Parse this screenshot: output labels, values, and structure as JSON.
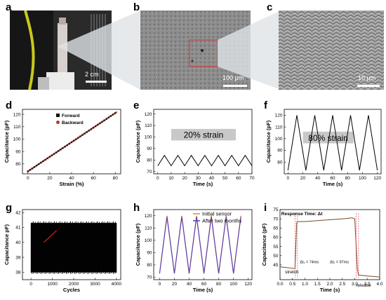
{
  "panels": [
    "a",
    "b",
    "c",
    "d",
    "e",
    "f",
    "g",
    "h",
    "i"
  ],
  "scalebars": {
    "a": "2 cm",
    "b": "100 μm",
    "c": "10 μm"
  },
  "d": {
    "xlabel": "Strain (%)",
    "ylabel": "Capacitance (pF)",
    "legend": [
      "Forward",
      "Backward"
    ],
    "xticks": [
      "0",
      "20",
      "40",
      "60",
      "80"
    ],
    "yticks": [
      "80",
      "90",
      "100",
      "110",
      "120"
    ]
  },
  "e": {
    "annotation": "20% strain",
    "xlabel": "Time (s)",
    "ylabel": "Capacitance (pF)",
    "xticks": [
      "0",
      "10",
      "20",
      "30",
      "40",
      "50",
      "60",
      "70"
    ],
    "yticks": [
      "70",
      "80",
      "90",
      "100",
      "110",
      "120"
    ]
  },
  "f": {
    "annotation": "80% strain",
    "xlabel": "Time (s)",
    "ylabel": "Capacitance (pF)",
    "xticks": [
      "0",
      "20",
      "40",
      "60",
      "80",
      "100",
      "120"
    ],
    "yticks": [
      "80",
      "90",
      "100",
      "110",
      "120"
    ]
  },
  "g": {
    "xlabel": "Cycles",
    "ylabel": "Capacitance pF)",
    "xticks": [
      "0",
      "1000",
      "2000",
      "3000",
      "4000"
    ],
    "yticks": [
      "38",
      "39",
      "40",
      "41",
      "42"
    ]
  },
  "h": {
    "xlabel": "Time (s)",
    "ylabel": "Capacitance (pF)",
    "legend": [
      "Initial sensor",
      "After two months"
    ],
    "xticks": [
      "0",
      "20",
      "40",
      "60",
      "80",
      "100",
      "120"
    ],
    "yticks": [
      "70",
      "80",
      "90",
      "100",
      "110",
      "120"
    ]
  },
  "i": {
    "title": "Response Time: Δt",
    "xlabel": "Time (s)",
    "ylabel": "Capacitance (pF)",
    "dt1": "Δt₁ = 74ms",
    "dt2": "Δt₂ = 97ms",
    "stretch": "stretch",
    "release": "release",
    "xticks": [
      "0.0",
      "0.5",
      "1.0",
      "1.5",
      "2.0",
      "2.5",
      "3.0",
      "3.5",
      "4.0"
    ],
    "yticks": [
      "45",
      "50",
      "55",
      "60",
      "65",
      "70",
      "75"
    ]
  },
  "chart_data": [
    {
      "type": "scatter",
      "panel": "d",
      "xlabel": "Strain (%)",
      "ylabel": "Capacitance (pF)",
      "xlim": [
        -5,
        85
      ],
      "ylim": [
        72,
        124
      ],
      "series": [
        {
          "name": "Forward",
          "x": [
            0,
            80
          ],
          "y": [
            74,
            121
          ]
        },
        {
          "name": "Backward",
          "x": [
            80,
            0
          ],
          "y": [
            121,
            74
          ]
        }
      ]
    },
    {
      "type": "line",
      "panel": "e",
      "xlabel": "Time (s)",
      "ylabel": "Capacitance (pF)",
      "xlim": [
        -3,
        70
      ],
      "ylim": [
        68,
        124
      ],
      "series": [
        {
          "x": [
            0,
            5,
            10,
            15,
            20,
            25,
            30,
            35,
            40,
            45,
            50,
            55,
            60,
            65,
            70
          ],
          "y": [
            75,
            84,
            75,
            84,
            75,
            84,
            75,
            84,
            75,
            84,
            75,
            84,
            75,
            84,
            75
          ]
        }
      ]
    },
    {
      "type": "line",
      "panel": "f",
      "xlabel": "Time (s)",
      "ylabel": "Capacitance (pF)",
      "xlim": [
        -5,
        125
      ],
      "ylim": [
        70,
        125
      ],
      "series": [
        {
          "x": [
            0,
            12,
            24,
            36,
            48,
            60,
            72,
            84,
            96,
            108,
            120
          ],
          "y": [
            73,
            120,
            73,
            120,
            73,
            120,
            73,
            120,
            73,
            120,
            73
          ]
        }
      ]
    },
    {
      "type": "area",
      "panel": "g",
      "xlabel": "Cycles",
      "ylabel": "Capacitance pF)",
      "xlim": [
        -400,
        4200
      ],
      "ylim": [
        37.5,
        42.2
      ],
      "series": [
        {
          "x": [
            0,
            4000
          ],
          "upper": [
            41.3,
            41.3
          ],
          "lower": [
            38.0,
            38.0
          ]
        }
      ]
    },
    {
      "type": "line",
      "panel": "h",
      "xlabel": "Time (s)",
      "ylabel": "Capacitance (pF)",
      "xlim": [
        -8,
        125
      ],
      "ylim": [
        68,
        125
      ],
      "series": [
        {
          "name": "Initial sensor",
          "x": [
            0,
            10,
            20,
            30,
            40,
            50,
            60,
            70,
            80,
            90,
            100,
            110
          ],
          "y": [
            73,
            120,
            73,
            120,
            73,
            120,
            73,
            120,
            73,
            120,
            73,
            120
          ]
        },
        {
          "name": "After two months",
          "x": [
            0,
            10,
            20,
            30,
            40,
            50,
            60,
            70,
            80,
            90,
            100,
            110
          ],
          "y": [
            73,
            119,
            73,
            119,
            73,
            119,
            73,
            119,
            73,
            119,
            73,
            119
          ]
        }
      ]
    },
    {
      "type": "line",
      "panel": "i",
      "xlabel": "Time (s)",
      "ylabel": "Capacitance (pF)",
      "xlim": [
        0,
        4
      ],
      "ylim": [
        37,
        75
      ],
      "series": [
        {
          "x": [
            0,
            0.6,
            0.67,
            0.7,
            1.0,
            1.5,
            2.0,
            2.5,
            2.9,
            3.0,
            3.1,
            3.15,
            3.5,
            4.0
          ],
          "y": [
            44,
            43,
            68,
            68.5,
            68.5,
            69,
            69.5,
            70,
            70.5,
            70,
            43,
            39.5,
            39,
            38.5
          ]
        }
      ],
      "annotations": [
        "Δt₁ = 74ms",
        "Δt₂ = 97ms",
        "stretch",
        "release"
      ]
    }
  ]
}
